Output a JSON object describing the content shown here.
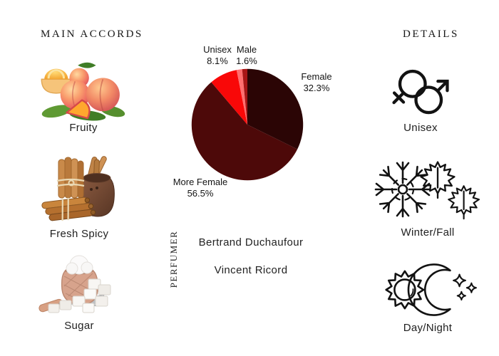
{
  "left": {
    "header": "MAIN ACCORDS",
    "accords": [
      {
        "label": "Fruity",
        "icon": "peaches-image"
      },
      {
        "label": "Fresh Spicy",
        "icon": "cinnamon-sticks-image"
      },
      {
        "label": "Sugar",
        "icon": "sugar-sack-cubes-image"
      }
    ]
  },
  "right": {
    "header": "DETAILS",
    "details": [
      {
        "label": "Unisex",
        "icon": "unisex-gender-icon"
      },
      {
        "label": "Winter/Fall",
        "icon": "snowflake-maple-leaves-icon"
      },
      {
        "label": "Day/Night",
        "icon": "sun-moon-icon"
      }
    ]
  },
  "center": {
    "perfumer_heading": "PERFUMER",
    "perfumers": [
      "Bertrand Duchaufour",
      "Vincent Ricord"
    ]
  },
  "chart_data": {
    "type": "pie",
    "title": "",
    "legend_position": "labels-around-pie",
    "start_angle_deg": -90,
    "direction": "clockwise",
    "slices": [
      {
        "label": "Female",
        "value": 32.3,
        "pct": "32.3%",
        "color": "#2b0505"
      },
      {
        "label": "More Female",
        "value": 56.5,
        "pct": "56.5%",
        "color": "#4d0909"
      },
      {
        "label": "Unisex",
        "value": 8.1,
        "pct": "8.1%",
        "color": "#f90808"
      },
      {
        "label": "Male",
        "value": 1.6,
        "pct": "1.6%",
        "color": "#ff6f6f"
      },
      {
        "label": "",
        "value": 1.5,
        "pct": "",
        "color": "#a81616"
      }
    ]
  }
}
